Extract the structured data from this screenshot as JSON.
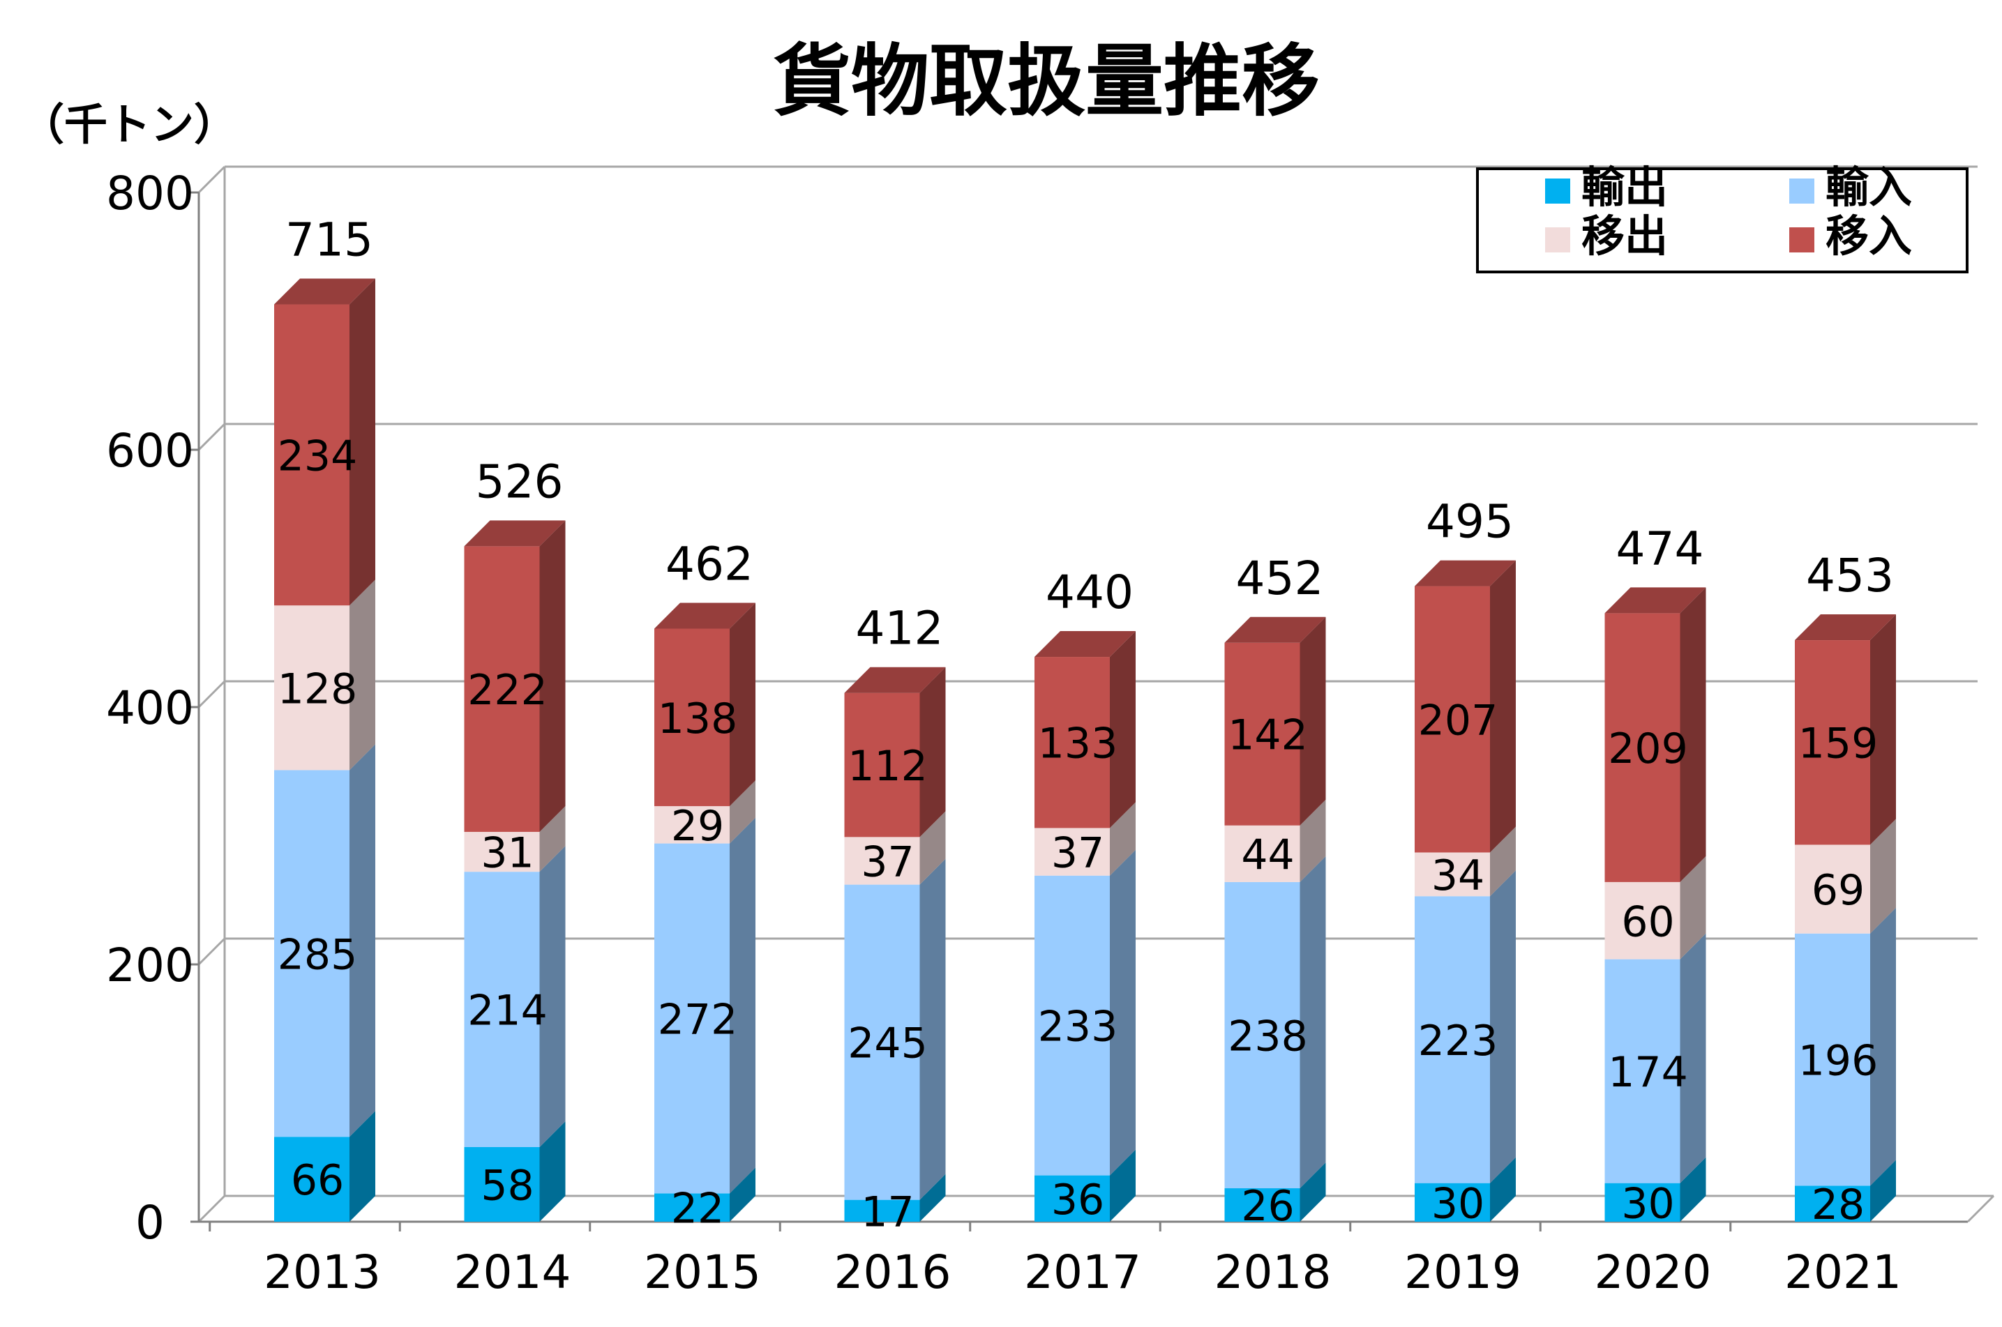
{
  "chart_data": {
    "type": "bar",
    "stacked": true,
    "three_d": true,
    "title": "貨物取扱量推移",
    "unit_label": "（千トン）",
    "categories": [
      "2013",
      "2014",
      "2015",
      "2016",
      "2017",
      "2018",
      "2019",
      "2020",
      "2021"
    ],
    "ylim": [
      0,
      800
    ],
    "yticks": [
      "0",
      "200",
      "400",
      "600",
      "800"
    ],
    "grid": true,
    "legend_position": "top-right",
    "series": [
      {
        "name": "輸出",
        "color": "#00B0F0",
        "values": [
          66,
          58,
          22,
          17,
          36,
          26,
          30,
          30,
          28
        ]
      },
      {
        "name": "輸入",
        "color": "#99CCFF",
        "values": [
          285,
          214,
          272,
          245,
          233,
          238,
          223,
          174,
          196
        ]
      },
      {
        "name": "移出",
        "color": "#F2DCDB",
        "values": [
          128,
          31,
          29,
          37,
          37,
          44,
          34,
          60,
          69
        ]
      },
      {
        "name": "移入",
        "color": "#C0504D",
        "values": [
          234,
          222,
          138,
          112,
          133,
          142,
          207,
          209,
          159
        ]
      }
    ],
    "totals": [
      "715",
      "526",
      "462",
      "412",
      "440",
      "452",
      "495",
      "474",
      "453"
    ],
    "legend_order": [
      "輸出",
      "輸入",
      "移出",
      "移入"
    ]
  }
}
